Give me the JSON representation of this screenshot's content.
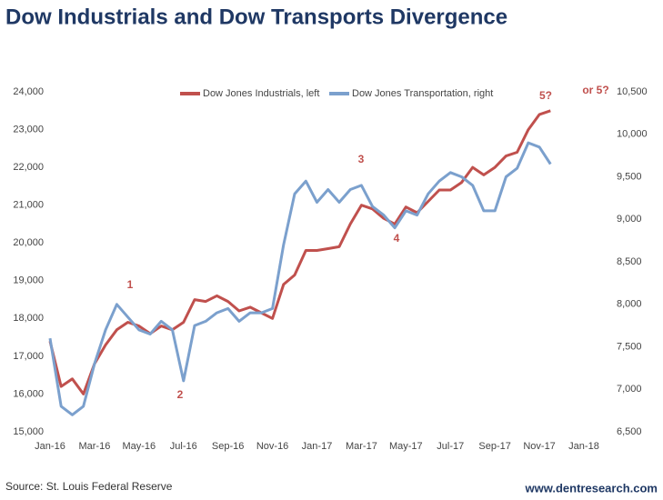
{
  "chart_data": {
    "type": "line",
    "title": "Dow Industrials and Dow Transports Divergence",
    "source": "Source: St. Louis Federal Reserve",
    "website": "www.dentresearch.com",
    "categories": [
      "Jan-16",
      null,
      null,
      null,
      "Mar-16",
      null,
      null,
      null,
      "May-16",
      null,
      null,
      null,
      "Jul-16",
      null,
      null,
      null,
      "Sep-16",
      null,
      null,
      null,
      "Nov-16",
      null,
      null,
      null,
      "Jan-17",
      null,
      null,
      null,
      "Mar-17",
      null,
      null,
      null,
      "May-17",
      null,
      null,
      null,
      "Jul-17",
      null,
      null,
      null,
      "Sep-17",
      null,
      null,
      null,
      "Nov-17",
      null,
      null,
      null,
      "Jan-18"
    ],
    "series": [
      {
        "name": "Dow Jones Industrials, left",
        "color": "#c0504d",
        "axis": "y",
        "values": [
          17400,
          16200,
          16400,
          16000,
          16800,
          17300,
          17700,
          17900,
          17800,
          17600,
          17800,
          17700,
          17900,
          18500,
          18450,
          18600,
          18450,
          18200,
          18300,
          18150,
          18000,
          18900,
          19150,
          19800,
          19800,
          19850,
          19900,
          20500,
          21000,
          20900,
          20650,
          20500,
          20950,
          20800,
          21100,
          21400,
          21400,
          21600,
          22000,
          21800,
          22000,
          22300,
          22400,
          23000,
          23400,
          23500,
          null,
          null,
          null
        ]
      },
      {
        "name": "Dow Jones Transportation, right",
        "color": "#7ba0cd",
        "axis": "y2",
        "values": [
          7600,
          6800,
          6700,
          6800,
          7300,
          7700,
          8000,
          7850,
          7700,
          7650,
          7800,
          7700,
          7100,
          7750,
          7800,
          7900,
          7950,
          7800,
          7900,
          7900,
          7950,
          8700,
          9300,
          9450,
          9200,
          9350,
          9200,
          9350,
          9400,
          9150,
          9050,
          8900,
          9100,
          9050,
          9300,
          9450,
          9550,
          9500,
          9400,
          9100,
          9100,
          9500,
          9600,
          9900,
          9850,
          9650,
          null,
          null,
          null
        ]
      }
    ],
    "ylim": [
      15000,
      24000
    ],
    "yticks": [
      {
        "value": 15000,
        "label": "15,000"
      },
      {
        "value": 16000,
        "label": "16,000"
      },
      {
        "value": 17000,
        "label": "17,000"
      },
      {
        "value": 18000,
        "label": "18,000"
      },
      {
        "value": 19000,
        "label": "19,000"
      },
      {
        "value": 20000,
        "label": "20,000"
      },
      {
        "value": 21000,
        "label": "21,000"
      },
      {
        "value": 22000,
        "label": "22,000"
      },
      {
        "value": 23000,
        "label": "23,000"
      },
      {
        "value": 24000,
        "label": "24,000"
      }
    ],
    "y2lim": [
      6500,
      10500
    ],
    "y2ticks": [
      {
        "value": 6500,
        "label": "6,500"
      },
      {
        "value": 7000,
        "label": "7,000"
      },
      {
        "value": 7500,
        "label": "7,500"
      },
      {
        "value": 8000,
        "label": "8,000"
      },
      {
        "value": 8500,
        "label": "8,500"
      },
      {
        "value": 9000,
        "label": "9,000"
      },
      {
        "value": 9500,
        "label": "9,500"
      },
      {
        "value": 10000,
        "label": "10,000"
      },
      {
        "value": 10500,
        "label": "10,500"
      }
    ],
    "annotations": [
      "1",
      "2",
      "3",
      "4",
      "5?",
      "or 5?"
    ],
    "legend": "top"
  }
}
